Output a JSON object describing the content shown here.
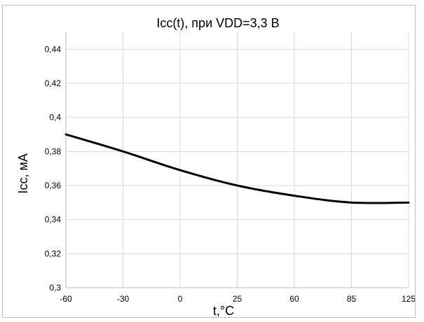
{
  "chart_data": {
    "type": "line",
    "title": "Icc(t), при VDD=3,3 В",
    "xlabel": "t,°C",
    "ylabel": "Icc, мА",
    "categories": [
      "-60",
      "-30",
      "0",
      "25",
      "60",
      "85",
      "125"
    ],
    "ylim": [
      0.3,
      0.45
    ],
    "yticks": [
      "0,3",
      "0,32",
      "0,34",
      "0,36",
      "0,38",
      "0,4",
      "0,42",
      "0,44"
    ],
    "ytick_values": [
      0.3,
      0.32,
      0.34,
      0.36,
      0.38,
      0.4,
      0.42,
      0.44
    ],
    "grid": true,
    "legend": "none",
    "series": [
      {
        "values": [
          0.39,
          0.38,
          0.369,
          0.36,
          0.354,
          0.35,
          0.35
        ],
        "color": "#000000"
      }
    ]
  }
}
